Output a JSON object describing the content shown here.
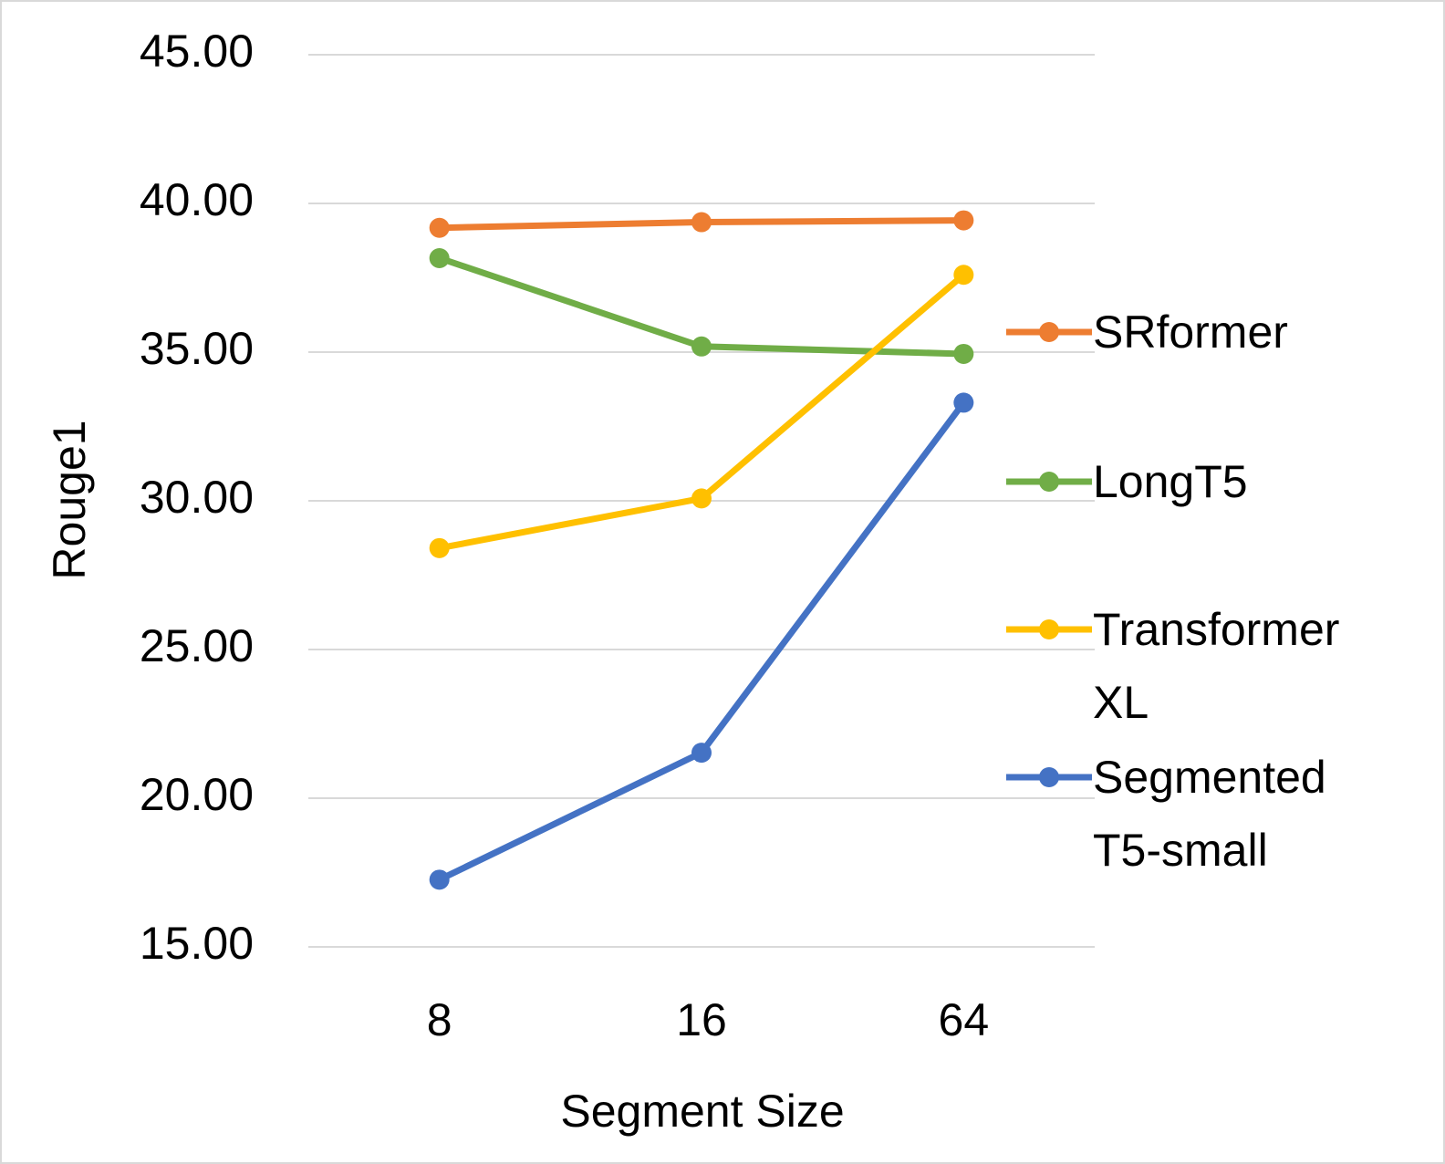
{
  "chart_data": {
    "type": "line",
    "x_label": "Segment Size",
    "y_label": "Rouge1",
    "categories": [
      "8",
      "16",
      "64"
    ],
    "series": [
      {
        "name": "SRformer",
        "color": "#ed7d31",
        "values": [
          39.18,
          39.37,
          39.43
        ]
      },
      {
        "name": "LongT5",
        "color": "#70ad47",
        "values": [
          38.16,
          35.19,
          34.94
        ]
      },
      {
        "name": "Transformer XL",
        "color": "#ffc000",
        "values": [
          28.41,
          30.08,
          37.6
        ]
      },
      {
        "name": "Segmented T5-small",
        "color": "#4472c4",
        "values": [
          17.26,
          21.53,
          33.3
        ]
      }
    ],
    "ylim": [
      15,
      45
    ],
    "yticks": [
      {
        "value": 15,
        "label": "15.00"
      },
      {
        "value": 20,
        "label": "20.00"
      },
      {
        "value": 25,
        "label": "25.00"
      },
      {
        "value": 30,
        "label": "30.00"
      },
      {
        "value": 35,
        "label": "35.00"
      },
      {
        "value": 40,
        "label": "40.00"
      },
      {
        "value": 45,
        "label": "45.00"
      }
    ],
    "grid": true
  }
}
